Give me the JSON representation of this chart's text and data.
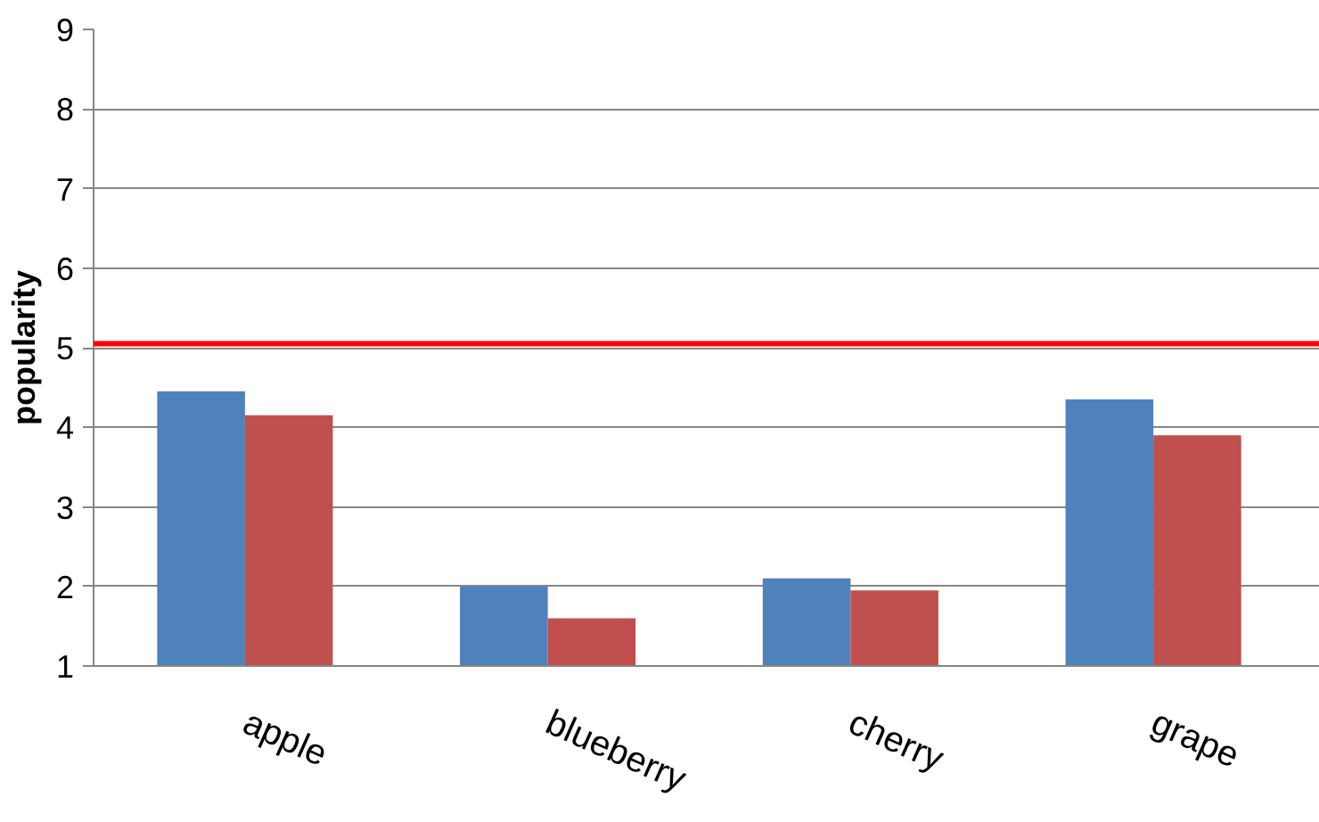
{
  "chart_data": {
    "type": "bar",
    "ylabel": "popularity",
    "categories": [
      "apple",
      "blueberry",
      "cherry",
      "grape"
    ],
    "series": [
      {
        "color": "#4f81bd",
        "values": [
          4.45,
          2.0,
          2.1,
          4.35
        ]
      },
      {
        "color": "#c0504d",
        "values": [
          4.15,
          1.6,
          1.95,
          3.9
        ]
      }
    ],
    "ylim": [
      1,
      9
    ],
    "yticks": [
      1,
      2,
      3,
      4,
      5,
      6,
      7,
      8,
      9
    ],
    "grid": "y",
    "ref_lines": [
      {
        "axis": "y",
        "value": 5.05,
        "color": "#ff0000"
      }
    ]
  }
}
